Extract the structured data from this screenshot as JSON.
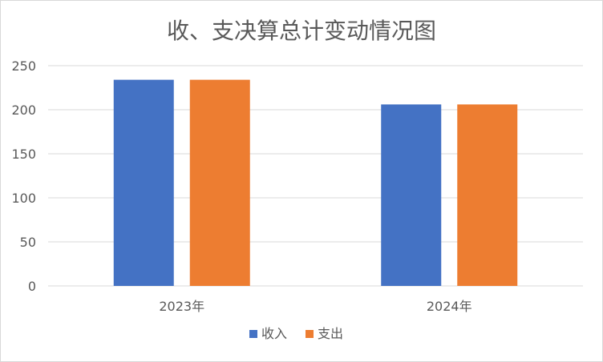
{
  "chart_data": {
    "type": "bar",
    "title": "收、支决算总计变动情况图",
    "categories": [
      "2023年",
      "2024年"
    ],
    "series": [
      {
        "name": "收入",
        "values": [
          234,
          206
        ],
        "color": "#4472c4"
      },
      {
        "name": "支出",
        "values": [
          234,
          206
        ],
        "color": "#ed7d31"
      }
    ],
    "ylim": [
      0,
      250
    ],
    "yticks": [
      0,
      50,
      100,
      150,
      200,
      250
    ],
    "grid": true,
    "legend": "bottom-center"
  }
}
